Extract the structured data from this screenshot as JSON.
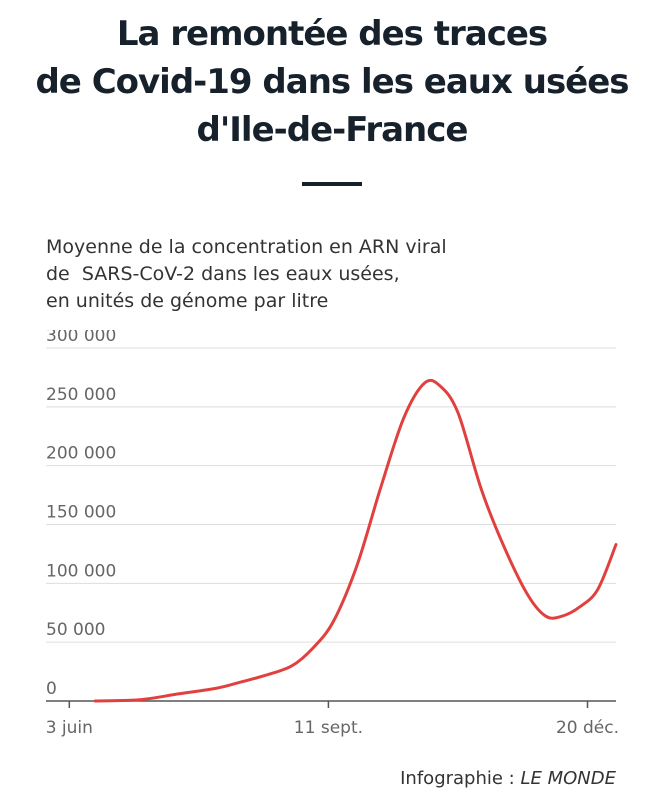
{
  "chart_data": {
    "type": "line",
    "title_lines": [
      "La remontée des traces",
      "de Covid-19 dans les eaux usées",
      "d'Ile-de-France"
    ],
    "subtitle_lines": [
      "Moyenne de la concentration en ARN viral",
      "de  SARS-CoV-2 dans les eaux usées,",
      "en unités de génome par litre"
    ],
    "y_ticks": [
      0,
      50000,
      100000,
      150000,
      200000,
      250000,
      300000
    ],
    "y_tick_labels": [
      "0",
      "50 000",
      "100 000",
      "150 000",
      "200 000",
      "250 000",
      "300 000"
    ],
    "ylim": [
      0,
      300000
    ],
    "x_ticks": [
      {
        "date": "2020-06-03",
        "label": "3 juin"
      },
      {
        "date": "2020-09-11",
        "label": "11 sept."
      },
      {
        "date": "2020-12-20",
        "label": "20 déc."
      }
    ],
    "xlim": [
      "2020-05-25",
      "2020-12-31"
    ],
    "grid": true,
    "series": [
      {
        "color": "#e0413f",
        "points": [
          {
            "x": "2020-06-13",
            "y": 0
          },
          {
            "x": "2020-06-30",
            "y": 1000
          },
          {
            "x": "2020-07-15",
            "y": 6000
          },
          {
            "x": "2020-07-30",
            "y": 11000
          },
          {
            "x": "2020-08-08",
            "y": 16000
          },
          {
            "x": "2020-08-18",
            "y": 22000
          },
          {
            "x": "2020-08-28",
            "y": 30000
          },
          {
            "x": "2020-09-05",
            "y": 45000
          },
          {
            "x": "2020-09-13",
            "y": 68000
          },
          {
            "x": "2020-09-22",
            "y": 115000
          },
          {
            "x": "2020-10-01",
            "y": 180000
          },
          {
            "x": "2020-10-10",
            "y": 240000
          },
          {
            "x": "2020-10-18",
            "y": 270000
          },
          {
            "x": "2020-10-24",
            "y": 268000
          },
          {
            "x": "2020-10-31",
            "y": 245000
          },
          {
            "x": "2020-11-09",
            "y": 180000
          },
          {
            "x": "2020-11-18",
            "y": 130000
          },
          {
            "x": "2020-11-27",
            "y": 90000
          },
          {
            "x": "2020-12-04",
            "y": 72000
          },
          {
            "x": "2020-12-10",
            "y": 72000
          },
          {
            "x": "2020-12-17",
            "y": 80000
          },
          {
            "x": "2020-12-24",
            "y": 95000
          },
          {
            "x": "2020-12-31",
            "y": 133000
          }
        ]
      }
    ]
  },
  "credit": {
    "label": "Infographie : ",
    "source": "LE MONDE"
  },
  "colors": {
    "line": "#e0413f",
    "grid": "#dddddd",
    "axis": "#555555",
    "tick_label": "#666666"
  }
}
